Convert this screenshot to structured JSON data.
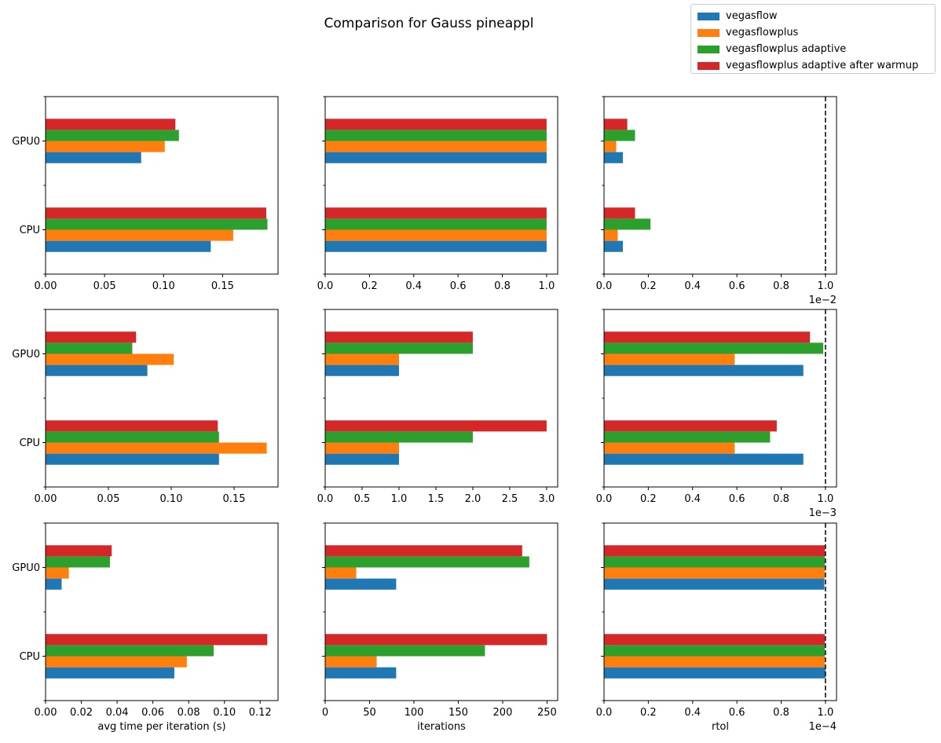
{
  "chart_data": {
    "type": "bar",
    "orientation": "horizontal",
    "title": "Comparison for Gauss pineappl",
    "legend": {
      "placement": "top-right",
      "entries": [
        {
          "name": "vegasflow",
          "color": "#1f77b4"
        },
        {
          "name": "vegasflowplus",
          "color": "#ff7f0e"
        },
        {
          "name": "vegasflowplus adaptive",
          "color": "#2ca02c"
        },
        {
          "name": "vegasflowplus adaptive after warmup",
          "color": "#d62728"
        }
      ]
    },
    "categories": [
      "CPU",
      "GPU0"
    ],
    "grid": false,
    "panels": [
      {
        "row": 0,
        "col": 0,
        "xlim": [
          0,
          0.197
        ],
        "xticks": [
          0.0,
          0.05,
          0.1,
          0.15
        ],
        "xticklabels": [
          "0.00",
          "0.05",
          "0.10",
          "0.15"
        ],
        "xlabel": "",
        "offset_label": "",
        "threshold": null,
        "series": [
          {
            "name": "vegasflow",
            "values": [
              0.14,
              0.081
            ]
          },
          {
            "name": "vegasflowplus",
            "values": [
              0.159,
              0.101
            ]
          },
          {
            "name": "vegasflowplus adaptive",
            "values": [
              0.188,
              0.113
            ]
          },
          {
            "name": "vegasflowplus adaptive after warmup",
            "values": [
              0.187,
              0.11
            ]
          }
        ]
      },
      {
        "row": 0,
        "col": 1,
        "xlim": [
          0,
          1.05
        ],
        "xticks": [
          0.0,
          0.2,
          0.4,
          0.6,
          0.8,
          1.0
        ],
        "xticklabels": [
          "0.0",
          "0.2",
          "0.4",
          "0.6",
          "0.8",
          "1.0"
        ],
        "xlabel": "",
        "offset_label": "",
        "threshold": null,
        "series": [
          {
            "name": "vegasflow",
            "values": [
              1,
              1
            ]
          },
          {
            "name": "vegasflowplus",
            "values": [
              1,
              1
            ]
          },
          {
            "name": "vegasflowplus adaptive",
            "values": [
              1,
              1
            ]
          },
          {
            "name": "vegasflowplus adaptive after warmup",
            "values": [
              1,
              1
            ]
          }
        ]
      },
      {
        "row": 0,
        "col": 2,
        "xlim": [
          0,
          1.05
        ],
        "xticks": [
          0.0,
          0.2,
          0.4,
          0.6,
          0.8,
          1.0
        ],
        "xticklabels": [
          "0.0",
          "0.2",
          "0.4",
          "0.6",
          "0.8",
          "1.0"
        ],
        "xlabel": "",
        "offset_label": "1e−2",
        "threshold": 1.0,
        "series": [
          {
            "name": "vegasflow",
            "values": [
              0.085,
              0.085
            ]
          },
          {
            "name": "vegasflowplus",
            "values": [
              0.062,
              0.055
            ]
          },
          {
            "name": "vegasflowplus adaptive",
            "values": [
              0.21,
              0.14
            ]
          },
          {
            "name": "vegasflowplus adaptive after warmup",
            "values": [
              0.14,
              0.105
            ]
          }
        ]
      },
      {
        "row": 1,
        "col": 0,
        "xlim": [
          0,
          0.185
        ],
        "xticks": [
          0.0,
          0.05,
          0.1,
          0.15
        ],
        "xticklabels": [
          "0.00",
          "0.05",
          "0.10",
          "0.15"
        ],
        "xlabel": "",
        "offset_label": "",
        "threshold": null,
        "series": [
          {
            "name": "vegasflow",
            "values": [
              0.138,
              0.081
            ]
          },
          {
            "name": "vegasflowplus",
            "values": [
              0.176,
              0.102
            ]
          },
          {
            "name": "vegasflowplus adaptive",
            "values": [
              0.138,
              0.069
            ]
          },
          {
            "name": "vegasflowplus adaptive after warmup",
            "values": [
              0.137,
              0.072
            ]
          }
        ]
      },
      {
        "row": 1,
        "col": 1,
        "xlim": [
          0,
          3.15
        ],
        "xticks": [
          0.0,
          0.5,
          1.0,
          1.5,
          2.0,
          2.5,
          3.0
        ],
        "xticklabels": [
          "0.0",
          "0.5",
          "1.0",
          "1.5",
          "2.0",
          "2.5",
          "3.0"
        ],
        "xlabel": "",
        "offset_label": "",
        "threshold": null,
        "series": [
          {
            "name": "vegasflow",
            "values": [
              1,
              1
            ]
          },
          {
            "name": "vegasflowplus",
            "values": [
              1,
              1
            ]
          },
          {
            "name": "vegasflowplus adaptive",
            "values": [
              2,
              2
            ]
          },
          {
            "name": "vegasflowplus adaptive after warmup",
            "values": [
              3,
              2
            ]
          }
        ]
      },
      {
        "row": 1,
        "col": 2,
        "xlim": [
          0,
          1.05
        ],
        "xticks": [
          0.0,
          0.2,
          0.4,
          0.6,
          0.8,
          1.0
        ],
        "xticklabels": [
          "0.0",
          "0.2",
          "0.4",
          "0.6",
          "0.8",
          "1.0"
        ],
        "xlabel": "",
        "offset_label": "1e−3",
        "threshold": 1.0,
        "series": [
          {
            "name": "vegasflow",
            "values": [
              0.9,
              0.9
            ]
          },
          {
            "name": "vegasflowplus",
            "values": [
              0.59,
              0.59
            ]
          },
          {
            "name": "vegasflowplus adaptive",
            "values": [
              0.75,
              0.99
            ]
          },
          {
            "name": "vegasflowplus adaptive after warmup",
            "values": [
              0.78,
              0.93
            ]
          }
        ]
      },
      {
        "row": 2,
        "col": 0,
        "xlim": [
          0,
          0.13
        ],
        "xticks": [
          0.0,
          0.02,
          0.04,
          0.06,
          0.08,
          0.1,
          0.12
        ],
        "xticklabels": [
          "0.00",
          "0.02",
          "0.04",
          "0.06",
          "0.08",
          "0.10",
          "0.12"
        ],
        "xlabel": "avg time per iteration (s)",
        "offset_label": "",
        "threshold": null,
        "series": [
          {
            "name": "vegasflow",
            "values": [
              0.072,
              0.009
            ]
          },
          {
            "name": "vegasflowplus",
            "values": [
              0.079,
              0.013
            ]
          },
          {
            "name": "vegasflowplus adaptive",
            "values": [
              0.094,
              0.036
            ]
          },
          {
            "name": "vegasflowplus adaptive after warmup",
            "values": [
              0.124,
              0.037
            ]
          }
        ]
      },
      {
        "row": 2,
        "col": 1,
        "xlim": [
          0,
          262
        ],
        "xticks": [
          0,
          50,
          100,
          150,
          200,
          250
        ],
        "xticklabels": [
          "0",
          "50",
          "100",
          "150",
          "200",
          "250"
        ],
        "xlabel": "iterations",
        "offset_label": "",
        "threshold": null,
        "series": [
          {
            "name": "vegasflow",
            "values": [
              80,
              80
            ]
          },
          {
            "name": "vegasflowplus",
            "values": [
              58,
              35
            ]
          },
          {
            "name": "vegasflowplus adaptive",
            "values": [
              180,
              230
            ]
          },
          {
            "name": "vegasflowplus adaptive after warmup",
            "values": [
              250,
              222
            ]
          }
        ]
      },
      {
        "row": 2,
        "col": 2,
        "xlim": [
          0,
          1.05
        ],
        "xticks": [
          0.0,
          0.2,
          0.4,
          0.6,
          0.8,
          1.0
        ],
        "xticklabels": [
          "0.0",
          "0.2",
          "0.4",
          "0.6",
          "0.8",
          "1.0"
        ],
        "xlabel": "rtol",
        "offset_label": "1e−4",
        "threshold": 1.0,
        "series": [
          {
            "name": "vegasflow",
            "values": [
              1.0,
              0.995
            ]
          },
          {
            "name": "vegasflowplus",
            "values": [
              0.997,
              0.997
            ]
          },
          {
            "name": "vegasflowplus adaptive",
            "values": [
              0.997,
              0.997
            ]
          },
          {
            "name": "vegasflowplus adaptive after warmup",
            "values": [
              0.997,
              0.997
            ]
          }
        ]
      }
    ]
  }
}
